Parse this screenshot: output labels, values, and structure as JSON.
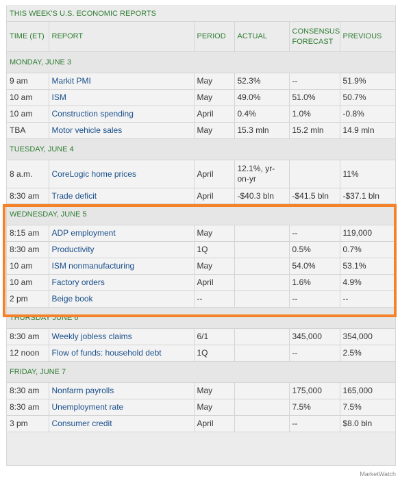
{
  "table": {
    "title": "THIS WEEK'S U.S. ECONOMIC REPORTS",
    "headers": {
      "time": "TIME (ET)",
      "report": "REPORT",
      "period": "PERIOD",
      "actual": "ACTUAL",
      "consensus_line1": "CONSENSUS",
      "consensus_line2": "FORECAST",
      "previous": "PREVIOUS"
    },
    "days": [
      {
        "label": "MONDAY, JUNE 3",
        "rows": [
          {
            "time": "9 am",
            "report": "Markit PMI",
            "period": "May",
            "actual": "52.3%",
            "consensus": "--",
            "previous": "51.9%"
          },
          {
            "time": "10 am",
            "report": "ISM",
            "period": "May",
            "actual": "49.0%",
            "consensus": "51.0%",
            "previous": "50.7%"
          },
          {
            "time": "10 am",
            "report": "Construction spending",
            "period": "April",
            "actual": "0.4%",
            "consensus": "1.0%",
            "previous": "-0.8%"
          },
          {
            "time": "TBA",
            "report": "Motor vehicle sales",
            "period": "May",
            "actual": "15.3 mln",
            "consensus": "15.2 mln",
            "previous": "14.9 mln"
          }
        ]
      },
      {
        "label": "TUESDAY, JUNE 4",
        "rows": [
          {
            "time": "8 a.m.",
            "report": "CoreLogic home prices",
            "period": "April",
            "actual": "12.1%, yr-on-yr",
            "consensus": "",
            "previous": "11%"
          },
          {
            "time": "8:30 am",
            "report": "Trade deficit",
            "period": "April",
            "actual": "-$40.3 bln",
            "consensus": "-$41.5 bln",
            "previous": "-$37.1 bln"
          }
        ]
      },
      {
        "label": "WEDNESDAY, JUNE 5",
        "rows": [
          {
            "time": "8:15 am",
            "report": "ADP employment",
            "period": "May",
            "actual": "",
            "consensus": "--",
            "previous": "119,000"
          },
          {
            "time": "8:30 am",
            "report": "Productivity",
            "period": "1Q",
            "actual": "",
            "consensus": "0.5%",
            "previous": "0.7%"
          },
          {
            "time": "10 am",
            "report": "ISM nonmanufacturing",
            "period": "May",
            "actual": "",
            "consensus": "54.0%",
            "previous": "53.1%"
          },
          {
            "time": "10 am",
            "report": "Factory orders",
            "period": "April",
            "actual": "",
            "consensus": "1.6%",
            "previous": "4.9%"
          },
          {
            "time": "2 pm",
            "report": "Beige book",
            "period": "--",
            "actual": "",
            "consensus": "--",
            "previous": "--"
          }
        ]
      },
      {
        "label": "THURSDAY JUNE 6",
        "rows": [
          {
            "time": "8:30 am",
            "report": "Weekly jobless claims",
            "period": "6/1",
            "actual": "",
            "consensus": "345,000",
            "previous": "354,000"
          },
          {
            "time": "12 noon",
            "report": "Flow of funds: household debt",
            "period": "1Q",
            "actual": "",
            "consensus": "--",
            "previous": "2.5%"
          }
        ]
      },
      {
        "label": "FRIDAY, JUNE 7",
        "rows": [
          {
            "time": "8:30 am",
            "report": "Nonfarm payrolls",
            "period": "May",
            "actual": "",
            "consensus": "175,000",
            "previous": "165,000"
          },
          {
            "time": "8:30 am",
            "report": "Unemployment rate",
            "period": "May",
            "actual": "",
            "consensus": "7.5%",
            "previous": "7.5%"
          },
          {
            "time": "3 pm",
            "report": "Consumer credit",
            "period": "April",
            "actual": "",
            "consensus": "--",
            "previous": "$8.0 bln"
          }
        ]
      }
    ]
  },
  "highlight_color": "#f5822a",
  "credit": "MarketWatch"
}
